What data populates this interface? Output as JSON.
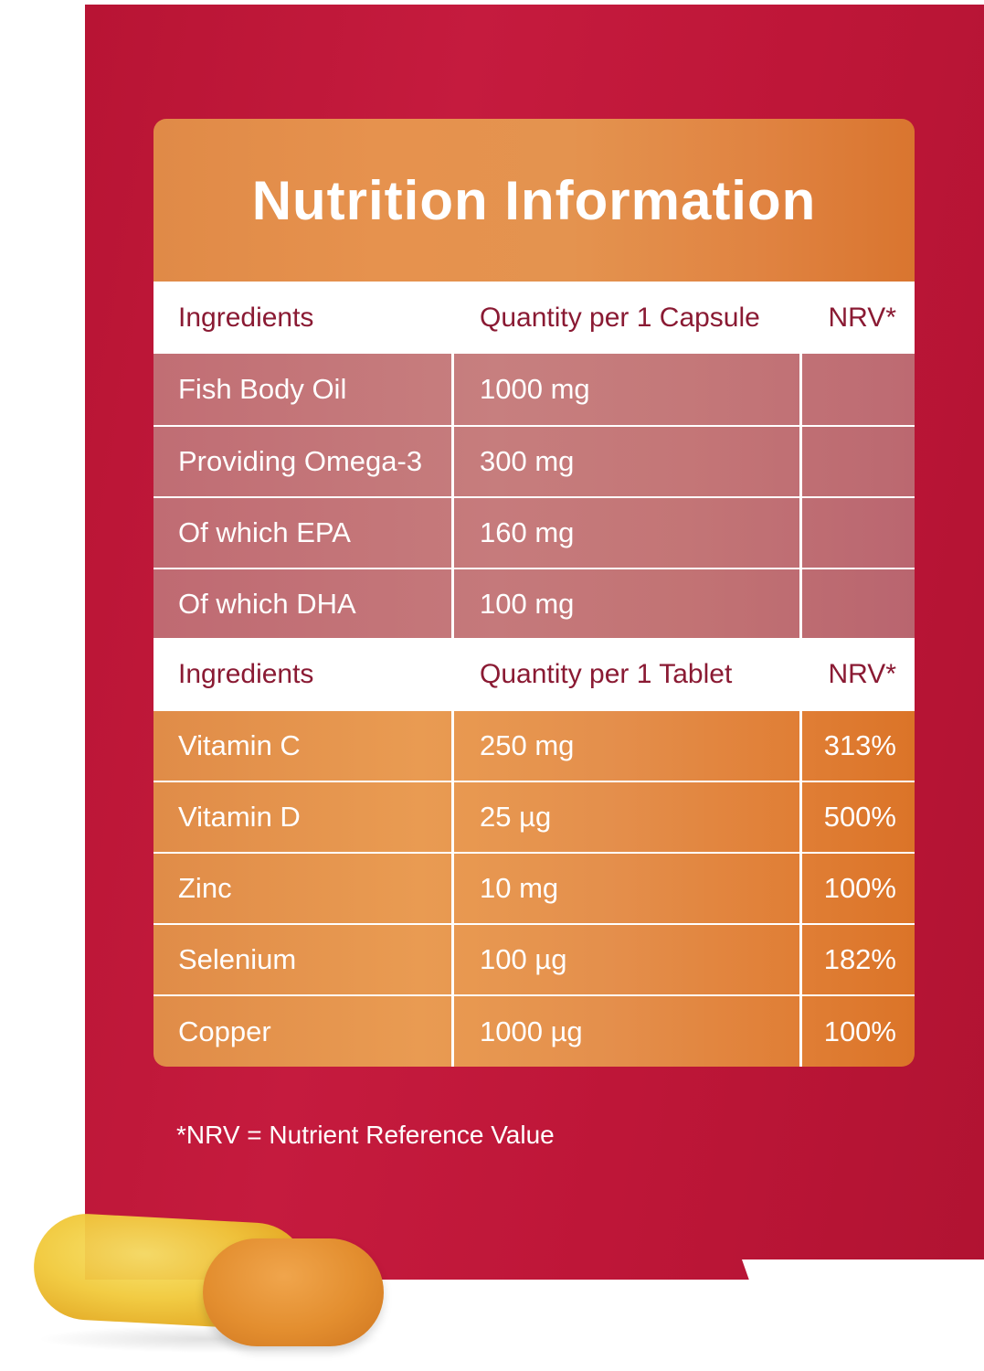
{
  "title": "Nutrition Information",
  "capsule_table": {
    "headers": [
      "Ingredients",
      "Quantity per 1 Capsule",
      "NRV*"
    ],
    "rows": [
      [
        "Fish Body Oil",
        "1000 mg",
        ""
      ],
      [
        "Providing Omega-3",
        "300 mg",
        ""
      ],
      [
        "Of which EPA",
        "160 mg",
        ""
      ],
      [
        "Of which DHA",
        "100 mg",
        ""
      ]
    ]
  },
  "tablet_table": {
    "headers": [
      "Ingredients",
      "Quantity per 1 Tablet",
      "NRV*"
    ],
    "rows": [
      [
        "Vitamin C",
        "250 mg",
        "313%"
      ],
      [
        "Vitamin D",
        "25 µg",
        "500%"
      ],
      [
        "Zinc",
        "10 mg",
        "100%"
      ],
      [
        "Selenium",
        "100 µg",
        "182%"
      ],
      [
        "Copper",
        "1000 µg",
        "100%"
      ]
    ]
  },
  "footnote": "*NRV = Nutrient Reference Value",
  "colors": {
    "box_red": "#c0183a",
    "panel_orange": "#e38d4a",
    "omega_rows": "#c4777a",
    "header_text": "#8a1a33"
  }
}
